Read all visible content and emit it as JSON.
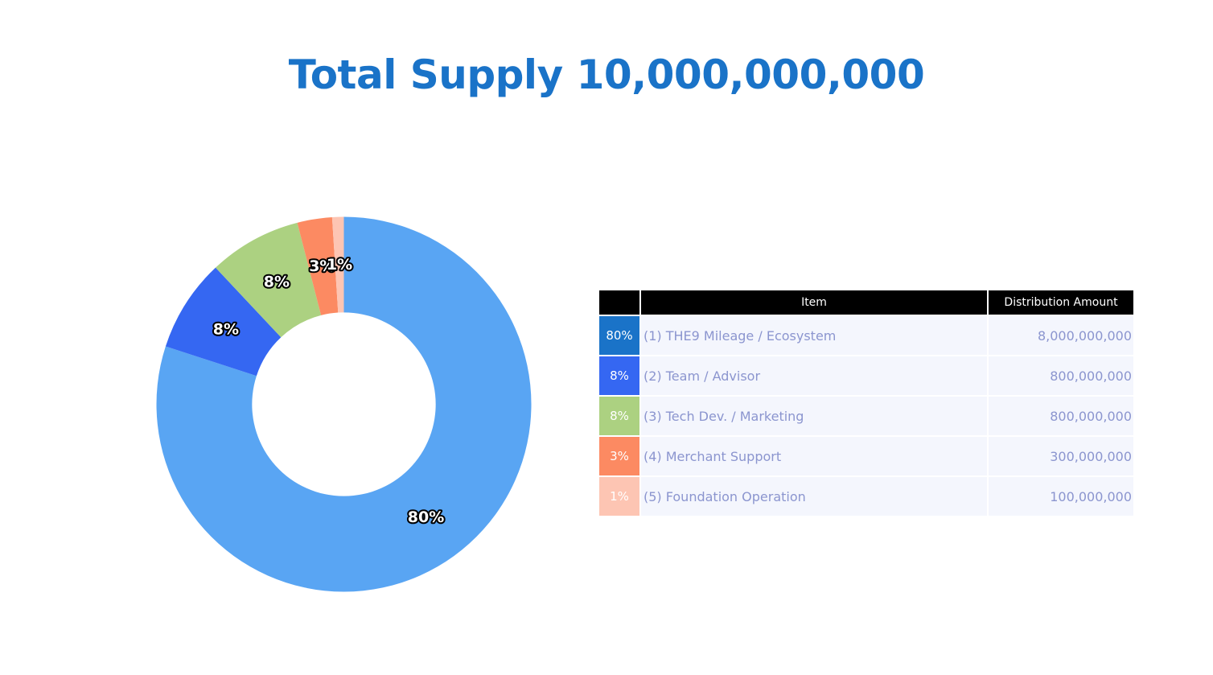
{
  "title": "Total Supply 10,000,000,000",
  "colors": {
    "title": "#1a73c8",
    "slices": [
      "#59a5f3",
      "#3567f2",
      "#acd181",
      "#fc8a62",
      "#fdc5b3"
    ],
    "table_pct_cells": [
      "#1a73c8",
      "#3567f2",
      "#acd181",
      "#fc8a62",
      "#fdc5b3"
    ],
    "table_header_bg": "#000000",
    "table_header_text": "#ffffff",
    "table_row_bg": "#f4f6fd",
    "table_row_text": "#8b95cf"
  },
  "chart_data": {
    "type": "pie",
    "hole": 0.49,
    "title": "",
    "categories": [
      "(1) THE9 Mileage / Ecosystem",
      "(2) Team / Advisor",
      "(3) Tech Dev. / Marketing",
      "(4) Merchant Support",
      "(5) Foundation Operation"
    ],
    "values": [
      8000000000,
      800000000,
      800000000,
      300000000,
      100000000
    ],
    "labels": [
      "80%",
      "8%",
      "8%",
      "3%",
      "1%"
    ],
    "direction": "clockwise",
    "start": "top"
  },
  "table": {
    "headers": [
      "",
      "Item",
      "Distribution Amount"
    ],
    "rows": [
      {
        "pct": "80%",
        "item": "(1) THE9 Mileage / Ecosystem",
        "amount": "8,000,000,000"
      },
      {
        "pct": "8%",
        "item": "(2) Team / Advisor",
        "amount": "800,000,000"
      },
      {
        "pct": "8%",
        "item": "(3) Tech Dev. / Marketing",
        "amount": "800,000,000"
      },
      {
        "pct": "3%",
        "item": "(4) Merchant Support",
        "amount": "300,000,000"
      },
      {
        "pct": "1%",
        "item": "(5) Foundation Operation",
        "amount": "100,000,000"
      }
    ]
  }
}
